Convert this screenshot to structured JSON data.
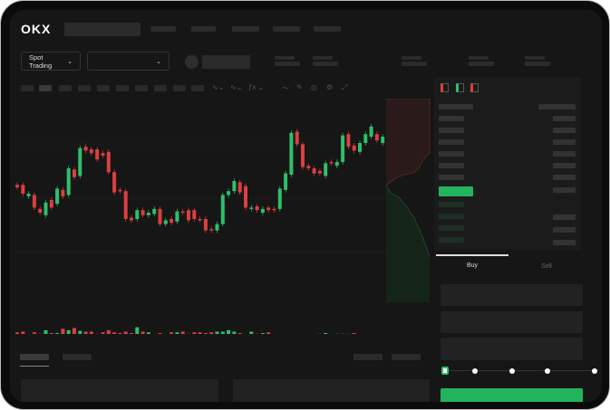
{
  "header": {
    "logo": "OKX"
  },
  "market": {
    "mode_dropdown": "Spot Trading"
  },
  "order_form": {
    "tabs": [
      {
        "label": "Buy",
        "active": true
      },
      {
        "label": "Sell",
        "active": false
      }
    ]
  },
  "colors": {
    "up": "#2fbf6a",
    "down": "#d9403f",
    "accent": "#22b35e"
  },
  "icons": [
    "candle-style-icon",
    "line-chart-icon",
    "pencil-icon",
    "target-icon",
    "settings-icon",
    "fullscreen-icon",
    "orderbook-both-icon",
    "orderbook-bids-icon",
    "orderbook-asks-icon"
  ],
  "chart_data": {
    "type": "candlestick",
    "ylim": [
      0,
      100
    ],
    "candles": [
      [
        42,
        40
      ],
      [
        42,
        35
      ],
      [
        33,
        35
      ],
      [
        34,
        24
      ],
      [
        23,
        20
      ],
      [
        18,
        28
      ],
      [
        30,
        24
      ],
      [
        27,
        39
      ],
      [
        38,
        33
      ],
      [
        34,
        55
      ],
      [
        54,
        48
      ],
      [
        49,
        71
      ],
      [
        72,
        69
      ],
      [
        70,
        67
      ],
      [
        70,
        62
      ],
      [
        67,
        65
      ],
      [
        68,
        52
      ],
      [
        52,
        36
      ],
      [
        38,
        37
      ],
      [
        37,
        15
      ],
      [
        16,
        14
      ],
      [
        15,
        22
      ],
      [
        22,
        18
      ],
      [
        18,
        20
      ],
      [
        19,
        23
      ],
      [
        23,
        11
      ],
      [
        11,
        14
      ],
      [
        15,
        12
      ],
      [
        13,
        21
      ],
      [
        21,
        20
      ],
      [
        22,
        14
      ],
      [
        22,
        15
      ],
      [
        15,
        14.5
      ],
      [
        15,
        6
      ],
      [
        7,
        6
      ],
      [
        6,
        11
      ],
      [
        11,
        34
      ],
      [
        34,
        37
      ],
      [
        37,
        45
      ],
      [
        44,
        36
      ],
      [
        41,
        24
      ],
      [
        23,
        24
      ],
      [
        25,
        22
      ],
      [
        20,
        23
      ],
      [
        24,
        22
      ],
      [
        23,
        22
      ],
      [
        23,
        39
      ],
      [
        38,
        51
      ],
      [
        50,
        83
      ],
      [
        84,
        74
      ],
      [
        74,
        56
      ],
      [
        57,
        55
      ],
      [
        55,
        51
      ],
      [
        53,
        51
      ],
      [
        49,
        59
      ],
      [
        60,
        59
      ],
      [
        57,
        60
      ],
      [
        60,
        81
      ],
      [
        82,
        72
      ],
      [
        73,
        69
      ],
      [
        68,
        75
      ],
      [
        75,
        82
      ],
      [
        80,
        88
      ],
      [
        82,
        77
      ],
      [
        75,
        80
      ]
    ],
    "volume": [
      55,
      60,
      35,
      55,
      45,
      70,
      50,
      50,
      80,
      70,
      85,
      65,
      60,
      60,
      45,
      55,
      70,
      55,
      50,
      60,
      50,
      90,
      60,
      55,
      35,
      50,
      40,
      55,
      55,
      60,
      45,
      55,
      55,
      50,
      55,
      60,
      60,
      70,
      60,
      50,
      40,
      60,
      45,
      50,
      55,
      30,
      10,
      15,
      25,
      30,
      35,
      35,
      40,
      45,
      50,
      40,
      45,
      45,
      45,
      50,
      40,
      40,
      30,
      20,
      25
    ]
  }
}
